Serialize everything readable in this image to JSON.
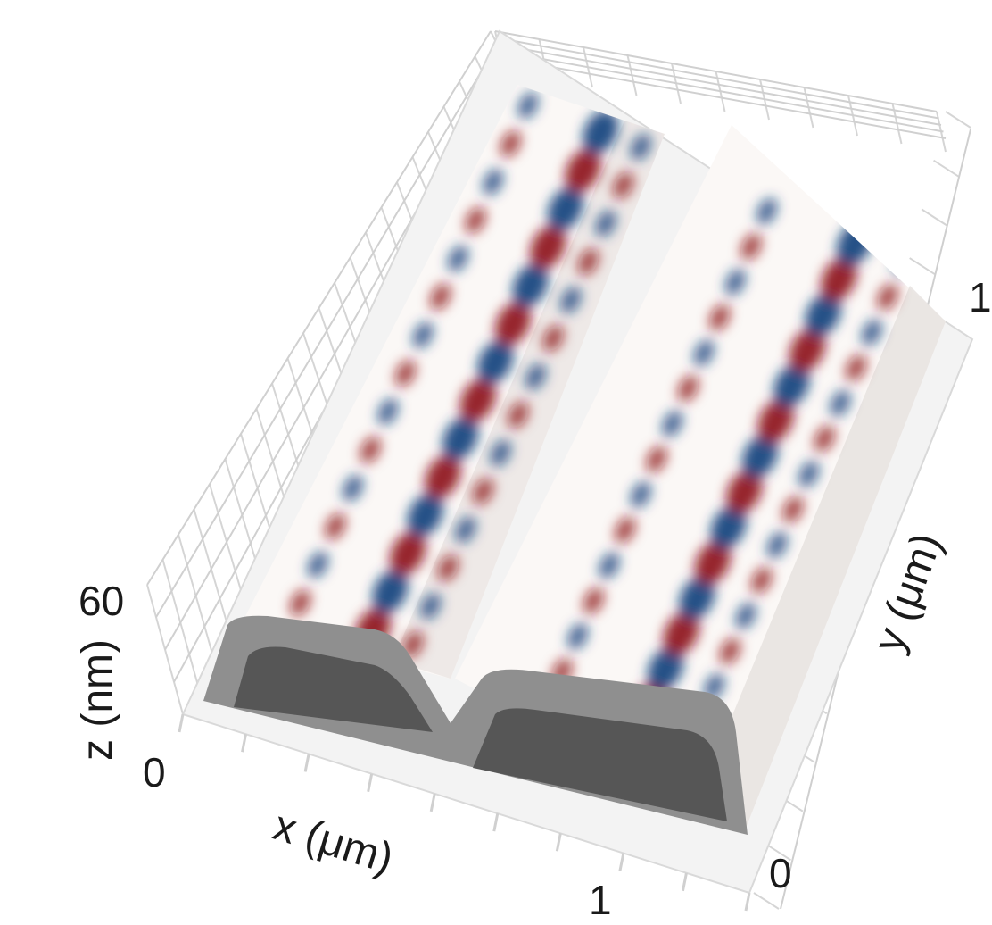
{
  "chart_data": {
    "type": "surface3d",
    "title": "",
    "axes": {
      "x": {
        "label": "x (μm)",
        "ticks": [
          "1"
        ]
      },
      "y": {
        "label": "y (μm)",
        "ticks": [
          "0",
          "1"
        ]
      },
      "z": {
        "label": "z (nm)",
        "ticks": [
          "0",
          "60"
        ],
        "range": [
          0,
          60
        ]
      }
    },
    "ridges": 2,
    "colormap": {
      "negative": "#0b3f7a",
      "zero": "#ffffff",
      "positive": "#8c1014"
    },
    "grid": true,
    "cross_section_colors": {
      "shell": "#8e8e8e",
      "core": "#555555"
    }
  }
}
